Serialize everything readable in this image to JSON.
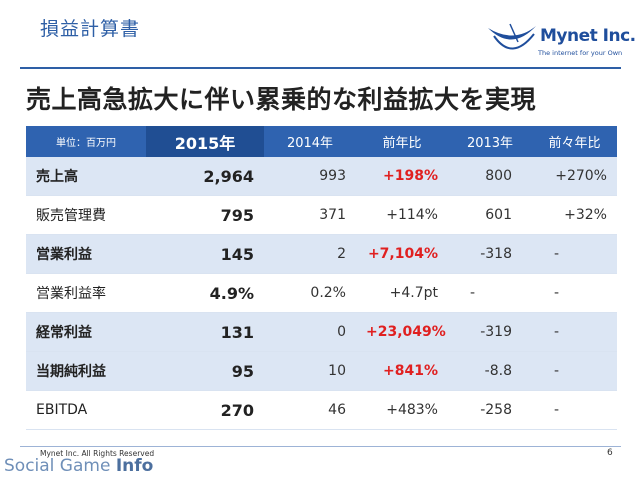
{
  "header": {
    "section_title": "損益計算書",
    "headline": "売上高急拡大に伴い累乗的な利益拡大を実現"
  },
  "logo": {
    "name": "Mynet Inc.",
    "tagline": "The internet for your Own",
    "color": "#1f4e9c"
  },
  "table": {
    "headers": [
      "単位：百万円",
      "2015年",
      "2014年",
      "前年比",
      "2013年",
      "前々年比"
    ],
    "rows": [
      {
        "label": "売上高",
        "y2015": "2,964",
        "y2014": "993",
        "yoy": "+198%",
        "y2013": "800",
        "yoy2": "+270%"
      },
      {
        "label": "販売管理費",
        "y2015": "795",
        "y2014": "371",
        "yoy": "+114%",
        "y2013": "601",
        "yoy2": "+32%"
      },
      {
        "label": "営業利益",
        "y2015": "145",
        "y2014": "2",
        "yoy": "+7,104%",
        "y2013": "-318",
        "yoy2": "-"
      },
      {
        "label": "営業利益率",
        "y2015": "4.9%",
        "y2014": "0.2%",
        "yoy": "+4.7pt",
        "y2013": "-",
        "yoy2": "-"
      },
      {
        "label": "経常利益",
        "y2015": "131",
        "y2014": "0",
        "yoy": "+23,049%",
        "y2013": "-319",
        "yoy2": "-"
      },
      {
        "label": "当期純利益",
        "y2015": "95",
        "y2014": "10",
        "yoy": "+841%",
        "y2013": "-8.8",
        "yoy2": "-"
      },
      {
        "label": "EBITDA",
        "y2015": "270",
        "y2014": "46",
        "yoy": "+483%",
        "y2013": "-258",
        "yoy2": "-"
      }
    ],
    "colors": {
      "header": "#2f63b0",
      "shade": "#dce6f4",
      "highlight": "#e02020"
    }
  },
  "footer": {
    "copyright": "Mynet Inc. All Rights Reserved",
    "page_number": "6",
    "brand_light": "Social Game ",
    "brand_bold": "Info"
  }
}
